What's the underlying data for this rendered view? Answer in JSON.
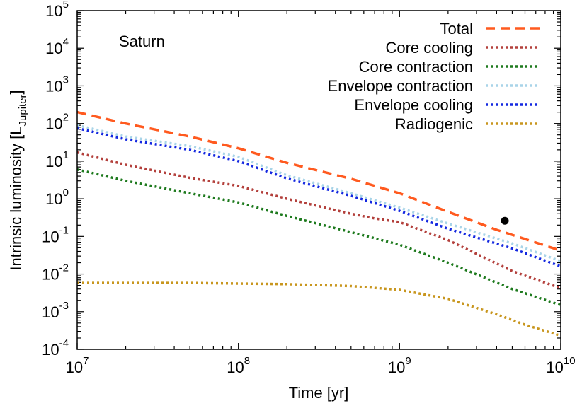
{
  "chart_data": {
    "type": "line",
    "x_scale": "log",
    "y_scale": "log",
    "xlabel": "Time [yr]",
    "ylabel_main": "Intrinsic luminosity [L",
    "ylabel_sub": "Jupiter",
    "ylabel_close": "]",
    "xlim": [
      10000000,
      10000000000
    ],
    "ylim": [
      0.0001,
      100000
    ],
    "x_ticks": [
      {
        "value": 10000000,
        "base": "10",
        "exp": "7"
      },
      {
        "value": 100000000,
        "base": "10",
        "exp": "8"
      },
      {
        "value": 1000000000,
        "base": "10",
        "exp": "9"
      },
      {
        "value": 10000000000,
        "base": "10",
        "exp": "10"
      }
    ],
    "y_ticks": [
      {
        "value": 0.0001,
        "base": "10",
        "exp": "-4"
      },
      {
        "value": 0.001,
        "base": "10",
        "exp": "-3"
      },
      {
        "value": 0.01,
        "base": "10",
        "exp": "-2"
      },
      {
        "value": 0.1,
        "base": "10",
        "exp": "-1"
      },
      {
        "value": 1,
        "base": "10",
        "exp": "0"
      },
      {
        "value": 10,
        "base": "10",
        "exp": "1"
      },
      {
        "value": 100,
        "base": "10",
        "exp": "2"
      },
      {
        "value": 1000,
        "base": "10",
        "exp": "3"
      },
      {
        "value": 10000,
        "base": "10",
        "exp": "4"
      },
      {
        "value": 100000,
        "base": "10",
        "exp": "5"
      }
    ],
    "annotation": "Saturn",
    "legend_position": "top-right",
    "series": [
      {
        "name": "Total",
        "color": "#ff5a1f",
        "dash": "dashed",
        "x": [
          10000000,
          20000000,
          50000000,
          100000000,
          200000000,
          500000000,
          1000000000,
          2000000000,
          4000000000,
          10000000000
        ],
        "y": [
          200,
          100,
          45,
          22,
          9,
          3.4,
          1.4,
          0.45,
          0.15,
          0.042
        ]
      },
      {
        "name": "Core cooling",
        "color": "#b3403c",
        "dash": "dotted",
        "x": [
          10000000,
          20000000,
          50000000,
          100000000,
          200000000,
          500000000,
          700000000,
          1000000000,
          2000000000,
          5000000000,
          10000000000
        ],
        "y": [
          17,
          8,
          3.6,
          2.2,
          1.0,
          0.4,
          0.3,
          0.24,
          0.08,
          0.012,
          0.0042
        ]
      },
      {
        "name": "Core contraction",
        "color": "#1e7a1e",
        "dash": "dotted",
        "x": [
          10000000,
          20000000,
          50000000,
          100000000,
          200000000,
          500000000,
          700000000,
          1000000000,
          2000000000,
          5000000000,
          10000000000
        ],
        "y": [
          6,
          3,
          1.4,
          0.8,
          0.35,
          0.13,
          0.09,
          0.06,
          0.02,
          0.004,
          0.0015
        ]
      },
      {
        "name": "Envelope contraction",
        "color": "#a8d4e8",
        "dash": "dotted",
        "x": [
          10000000,
          20000000,
          50000000,
          100000000,
          200000000,
          500000000,
          1000000000,
          2000000000,
          5000000000,
          10000000000
        ],
        "y": [
          90,
          45,
          25,
          13,
          4.2,
          1.4,
          0.58,
          0.22,
          0.065,
          0.022
        ]
      },
      {
        "name": "Envelope cooling",
        "color": "#1428e0",
        "dash": "dotted",
        "x": [
          10000000,
          20000000,
          50000000,
          100000000,
          200000000,
          500000000,
          1000000000,
          2000000000,
          5000000000,
          10000000000
        ],
        "y": [
          75,
          38,
          20,
          10,
          3.5,
          1.2,
          0.48,
          0.16,
          0.048,
          0.016
        ]
      },
      {
        "name": "Radiogenic",
        "color": "#c8961e",
        "dash": "dotted",
        "x": [
          10000000,
          50000000,
          100000000,
          200000000,
          500000000,
          1000000000,
          2000000000,
          4000000000,
          6000000000,
          10000000000
        ],
        "y": [
          0.0058,
          0.0058,
          0.0056,
          0.0054,
          0.0048,
          0.0038,
          0.0022,
          0.00085,
          0.00045,
          0.00023
        ]
      }
    ],
    "observed_point": {
      "x": 4500000000,
      "y": 0.26,
      "color": "#000000"
    }
  }
}
